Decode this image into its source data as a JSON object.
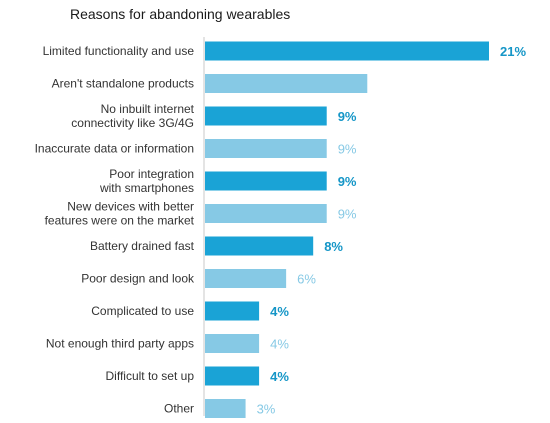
{
  "chart_data": {
    "type": "bar",
    "orientation": "horizontal",
    "title": "Reasons for abandoning wearables",
    "categories": [
      [
        "Limited functionality and use"
      ],
      [
        "Aren't standalone products"
      ],
      [
        "No inbuilt internet",
        "connectivity like 3G/4G"
      ],
      [
        "Inaccurate data or information"
      ],
      [
        "Poor integration",
        "with smartphones"
      ],
      [
        "New devices with better",
        "features were on the market"
      ],
      [
        "Battery drained fast"
      ],
      [
        "Poor design and look"
      ],
      [
        "Complicated to use"
      ],
      [
        "Not enough third party apps"
      ],
      [
        "Difficult to set up"
      ],
      [
        "Other"
      ]
    ],
    "values": [
      21,
      12,
      9,
      9,
      9,
      9,
      8,
      6,
      4,
      4,
      4,
      3
    ],
    "labels": [
      "21%",
      "",
      "9%",
      "9%",
      "9%",
      "9%",
      "8%",
      "6%",
      "4%",
      "4%",
      "4%",
      "3%"
    ],
    "highlighted": [
      true,
      false,
      true,
      false,
      true,
      false,
      true,
      false,
      true,
      false,
      true,
      false
    ],
    "colors": {
      "dark_bar": "#1aa3d6",
      "light_bar": "#86c9e5",
      "dark_label": "#1596c7",
      "light_label": "#86c9e5",
      "axis": "#c8c8c8"
    },
    "xlim": [
      0,
      23
    ],
    "grid": false,
    "legend": "none"
  }
}
